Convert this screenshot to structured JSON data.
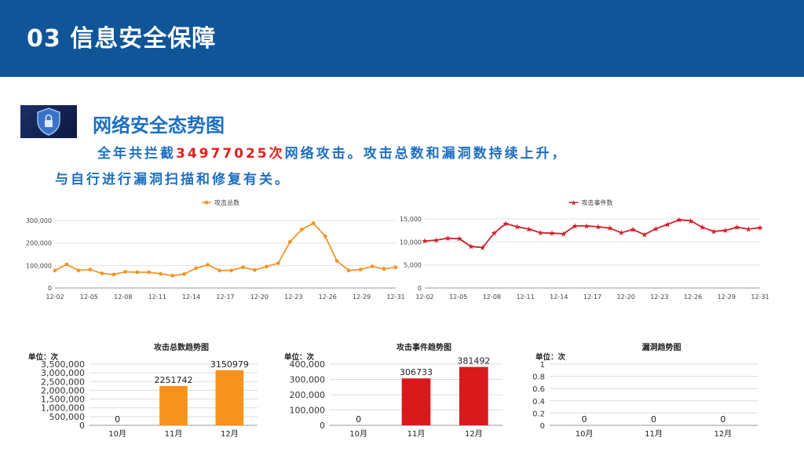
{
  "header": {
    "title": "03 信息安全保障"
  },
  "section": {
    "badge_icon": "shield-lock-icon",
    "title": "网络安全态势图",
    "summary_prefix": "全年共拦截",
    "summary_number": "34977025次",
    "summary_suffix": "网络攻击。攻击总数和漏洞数持续上升，",
    "summary_line2": "与自行进行漏洞扫描和修复有关。"
  },
  "chart_data": [
    {
      "type": "line",
      "legend": "攻击总数",
      "color": "#f0962c",
      "yticks": [
        "0",
        "100,000",
        "200,000",
        "300,000"
      ],
      "ylim": [
        0,
        300000
      ],
      "xticks": [
        "12-02",
        "12-05",
        "12-08",
        "12-11",
        "12-14",
        "12-17",
        "12-20",
        "12-23",
        "12-26",
        "12-29",
        "12-31"
      ],
      "values": [
        78000,
        105000,
        78000,
        82000,
        65000,
        60000,
        72000,
        70000,
        70000,
        63000,
        55000,
        62000,
        88000,
        103000,
        78000,
        78000,
        92000,
        80000,
        95000,
        110000,
        205000,
        260000,
        288000,
        230000,
        120000,
        78000,
        82000,
        96000,
        85000,
        92000
      ]
    },
    {
      "type": "line",
      "legend": "攻击事件数",
      "color": "#d0202a",
      "yticks": [
        "0",
        "5,000",
        "10,000",
        "15,000"
      ],
      "ylim": [
        0,
        15000
      ],
      "xticks": [
        "12-02",
        "12-05",
        "12-08",
        "12-11",
        "12-14",
        "12-17",
        "12-20",
        "12-23",
        "12-26",
        "12-29",
        "12-31"
      ],
      "values": [
        10200,
        10400,
        10800,
        10700,
        9000,
        8800,
        11900,
        14000,
        13300,
        12800,
        12000,
        11900,
        11800,
        13500,
        13500,
        13300,
        13000,
        12000,
        12700,
        11600,
        12900,
        13800,
        14800,
        14600,
        13200,
        12300,
        12500,
        13200,
        12800,
        13100
      ]
    },
    {
      "type": "bar",
      "title": "攻击总数趋势图",
      "unit": "单位：次",
      "color": "#f7921e",
      "categories": [
        "10月",
        "11月",
        "12月"
      ],
      "values": [
        0,
        2251742,
        3150979
      ],
      "labels": [
        "0",
        "2251742",
        "3150979"
      ],
      "yticks": [
        "0",
        "500,000",
        "1,000,000",
        "1,500,000",
        "2,000,000",
        "2,500,000",
        "3,000,000",
        "3,500,000"
      ],
      "ylim": [
        0,
        3500000
      ]
    },
    {
      "type": "bar",
      "title": "攻击事件趋势图",
      "unit": "单位：次",
      "color": "#d9191c",
      "categories": [
        "10月",
        "11月",
        "12月"
      ],
      "values": [
        0,
        306733,
        381492
      ],
      "labels": [
        "0",
        "306733",
        "381492"
      ],
      "yticks": [
        "0",
        "100,000",
        "200,000",
        "300,000",
        "400,000"
      ],
      "ylim": [
        0,
        400000
      ]
    },
    {
      "type": "bar",
      "title": "漏洞趋势图",
      "unit": "单位：次",
      "color": "#4472c4",
      "categories": [
        "10月",
        "11月",
        "12月"
      ],
      "values": [
        0,
        0,
        0
      ],
      "labels": [
        "0",
        "0",
        "0"
      ],
      "yticks": [
        "0",
        "0.2",
        "0.4",
        "0.6",
        "0.8",
        "1"
      ],
      "ylim": [
        0,
        1
      ]
    }
  ]
}
